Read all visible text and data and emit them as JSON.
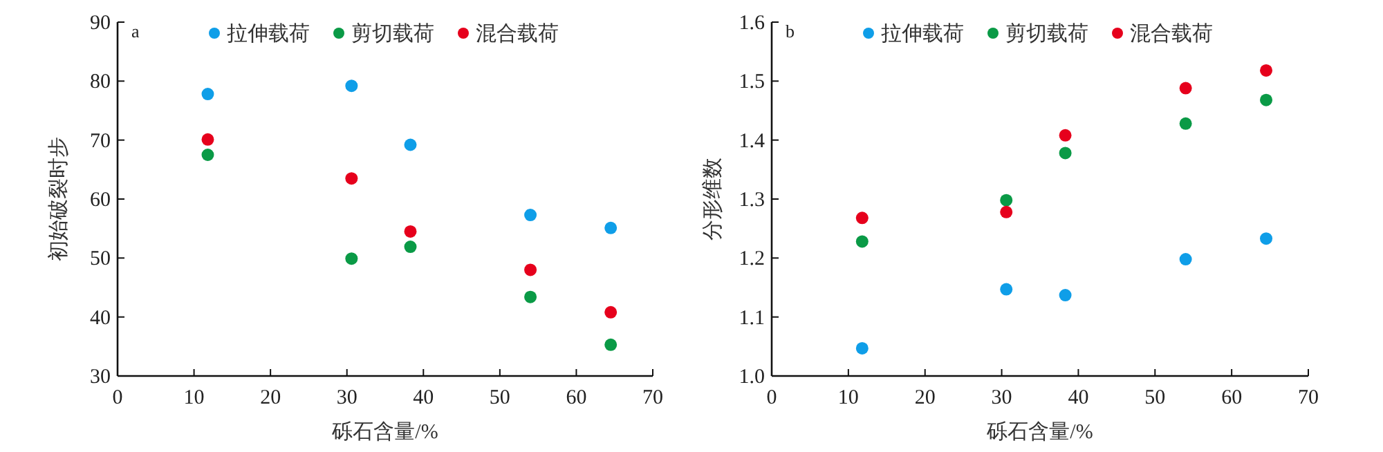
{
  "chart_data": [
    {
      "type": "scatter",
      "title": "a",
      "xlabel": "砾石含量/%",
      "ylabel": "初始破裂时步",
      "x": [
        11.8,
        30.6,
        38.3,
        54.0,
        64.5
      ],
      "xlim": [
        0,
        70
      ],
      "xticks": [
        0,
        10,
        20,
        30,
        40,
        50,
        60,
        70
      ],
      "ylim": [
        30,
        90
      ],
      "yticks": [
        30,
        40,
        50,
        60,
        70,
        80,
        90
      ],
      "marker": "circle",
      "legend": "top",
      "grid": false,
      "series": [
        {
          "name": "拉伸载荷",
          "color": "#0f9ee8",
          "values": [
            77.8,
            79.2,
            69.2,
            57.3,
            55.1
          ]
        },
        {
          "name": "剪切载荷",
          "color": "#0a9a46",
          "values": [
            67.5,
            49.9,
            51.9,
            43.4,
            35.3
          ]
        },
        {
          "name": "混合载荷",
          "color": "#e6001c",
          "values": [
            70.1,
            63.5,
            54.5,
            48.0,
            40.8
          ]
        }
      ]
    },
    {
      "type": "scatter",
      "title": "b",
      "xlabel": "砾石含量/%",
      "ylabel": "分形维数",
      "x": [
        11.8,
        30.6,
        38.3,
        54.0,
        64.5
      ],
      "xlim": [
        0,
        70
      ],
      "xticks": [
        0,
        10,
        20,
        30,
        40,
        50,
        60,
        70
      ],
      "ylim": [
        1.0,
        1.6
      ],
      "yticks": [
        {
          "value": 1.0,
          "label": "1.0"
        },
        1.1,
        1.2,
        1.3,
        1.4,
        1.5,
        1.6
      ],
      "marker": "circle",
      "legend": "top",
      "grid": false,
      "series": [
        {
          "name": "拉伸载荷",
          "color": "#0f9ee8",
          "values": [
            1.047,
            1.147,
            1.137,
            1.198,
            1.233
          ]
        },
        {
          "name": "剪切载荷",
          "color": "#0a9a46",
          "values": [
            1.228,
            1.298,
            1.378,
            1.428,
            1.468
          ]
        },
        {
          "name": "混合载荷",
          "color": "#e6001c",
          "values": [
            1.268,
            1.278,
            1.408,
            1.488,
            1.518
          ]
        }
      ]
    }
  ]
}
